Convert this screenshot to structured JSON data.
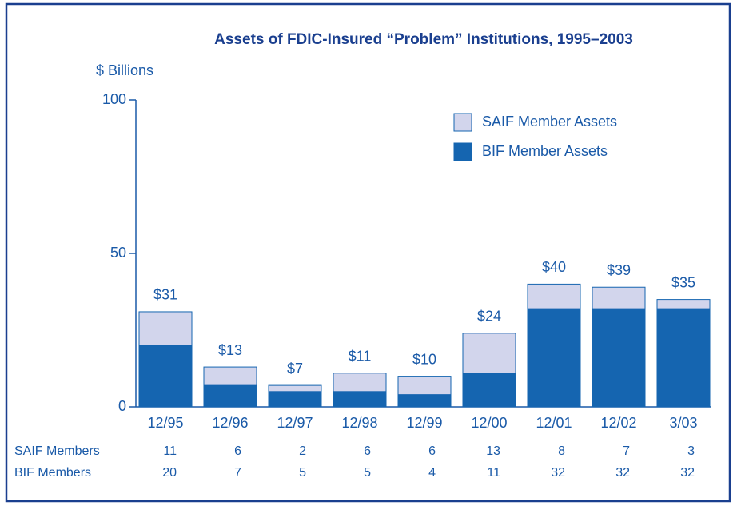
{
  "chart_data": {
    "type": "stacked_bar",
    "title": "Assets of FDIC-Insured “Problem” Institutions, 1995–2003",
    "y_label": "$ Billions",
    "categories": [
      "12/95",
      "12/96",
      "12/97",
      "12/98",
      "12/99",
      "12/00",
      "12/01",
      "12/02",
      "3/03"
    ],
    "series": [
      {
        "name": "BIF Member Assets",
        "color": "#1565b0",
        "values": [
          20,
          7,
          5,
          5,
          4,
          11,
          32,
          32,
          32
        ]
      },
      {
        "name": "SAIF Member Assets",
        "color": "#d2d5ec",
        "values": [
          11,
          6,
          2,
          6,
          6,
          13,
          8,
          7,
          3
        ]
      }
    ],
    "total_labels": [
      "$31",
      "$13",
      "$7",
      "$11",
      "$10",
      "$24",
      "$40",
      "$39",
      "$35"
    ],
    "ylim": [
      0,
      100
    ],
    "yticks": [
      0,
      50,
      100
    ],
    "legend": "upper right",
    "table": {
      "rows": [
        {
          "label": "SAIF Members",
          "values": [
            11,
            6,
            2,
            6,
            6,
            13,
            8,
            7,
            3
          ]
        },
        {
          "label": "BIF Members",
          "values": [
            20,
            7,
            5,
            5,
            4,
            11,
            32,
            32,
            32
          ]
        }
      ]
    }
  }
}
